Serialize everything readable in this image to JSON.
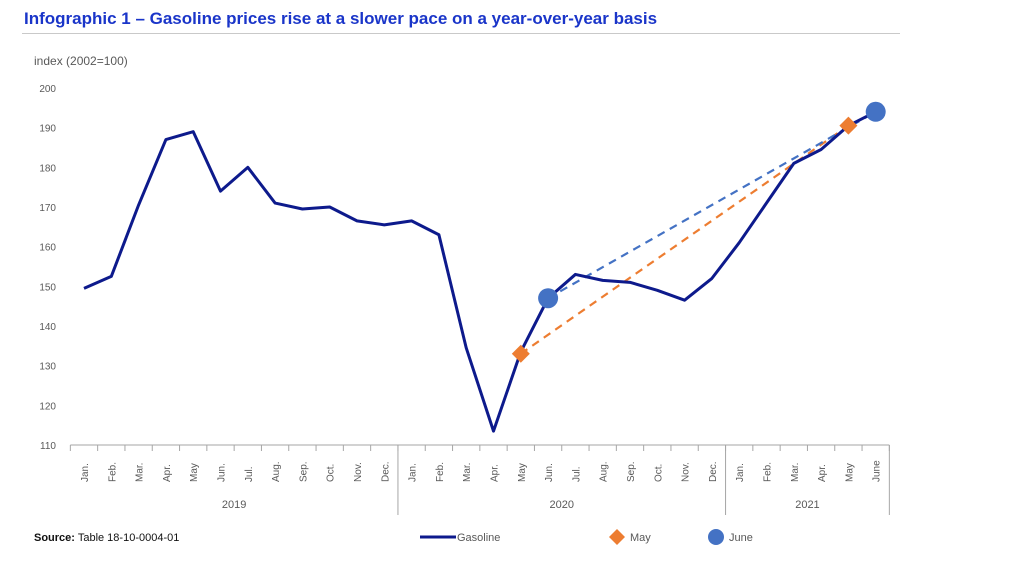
{
  "title": "Infographic 1 –  Gasoline prices rise at a slower pace on a year-over-year basis",
  "source_label": "Source:",
  "source_text": "Table 18-10-0004-01",
  "chart_data": {
    "type": "line",
    "ylabel": "index (2002=100)",
    "ylim": [
      110,
      200
    ],
    "yticks": [
      110,
      120,
      130,
      140,
      150,
      160,
      170,
      180,
      190,
      200
    ],
    "categories": [
      "Jan.",
      "Feb.",
      "Mar.",
      "Apr.",
      "May",
      "Jun.",
      "Jul.",
      "Aug.",
      "Sep.",
      "Oct.",
      "Nov.",
      "Dec.",
      "Jan.",
      "Feb.",
      "Mar.",
      "Apr.",
      "May",
      "Jun.",
      "Jul.",
      "Aug.",
      "Sep.",
      "Oct.",
      "Nov.",
      "Dec.",
      "Jan.",
      "Feb.",
      "Mar.",
      "Apr.",
      "May",
      "June"
    ],
    "years": [
      {
        "label": "2019",
        "start": 0,
        "end": 11
      },
      {
        "label": "2020",
        "start": 12,
        "end": 23
      },
      {
        "label": "2021",
        "start": 24,
        "end": 29
      }
    ],
    "series": [
      {
        "name": "Gasoline",
        "color": "#0d1a8c",
        "values": [
          149.5,
          152.5,
          170.5,
          187,
          189,
          174,
          180,
          171,
          169.5,
          170,
          166.5,
          165.5,
          166.5,
          163,
          134.5,
          113.5,
          133.5,
          147,
          153,
          151.5,
          151,
          149,
          146.5,
          152,
          161,
          171,
          181,
          184.5,
          190.5,
          194
        ]
      }
    ],
    "markers": [
      {
        "name": "May",
        "shape": "diamond",
        "color": "#ed7d31",
        "points": [
          {
            "index": 16,
            "value": 133
          },
          {
            "index": 28,
            "value": 190.5
          }
        ]
      },
      {
        "name": "June",
        "shape": "circle",
        "color": "#4472c4",
        "points": [
          {
            "index": 17,
            "value": 147
          },
          {
            "index": 29,
            "value": 194
          }
        ]
      }
    ],
    "grid": false,
    "legend": "bottom"
  }
}
